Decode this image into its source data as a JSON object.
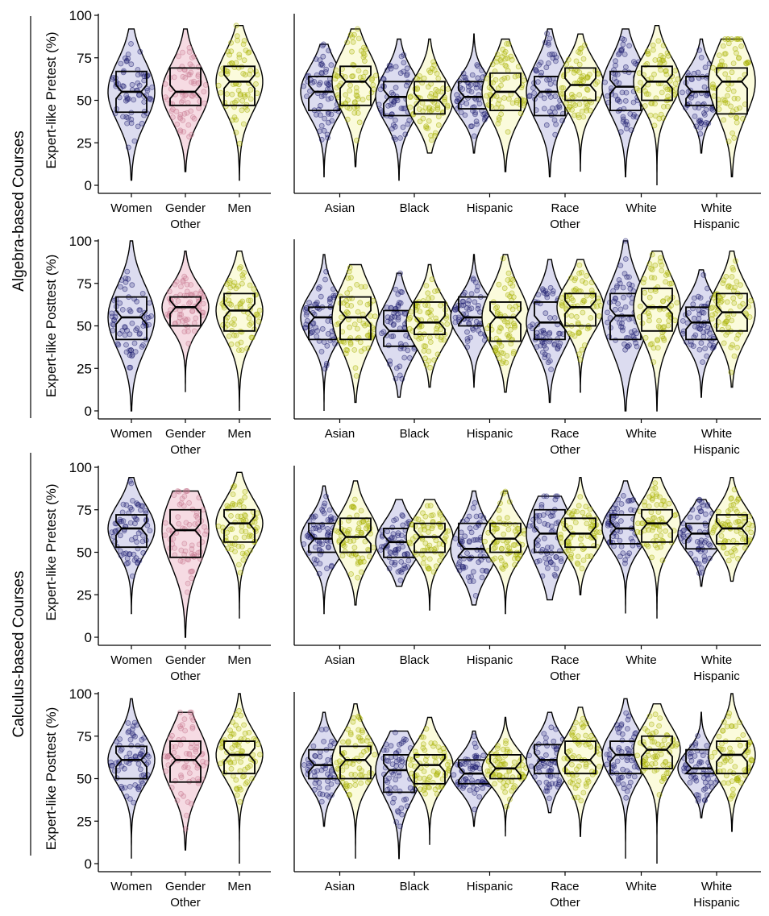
{
  "colors": {
    "women": "#1a1a6e",
    "gender_other": "#c97a91",
    "men": "#a8b000",
    "race_left": "#1a1a6e",
    "race_right": "#a8b000",
    "fill_women": "#dcdcf0",
    "fill_other": "#f6dbe3",
    "fill_men": "#fbfbdc"
  },
  "chart_data": {
    "type": "violin",
    "group_labels": [
      "Algebra-based Courses",
      "Calculus-based Courses"
    ],
    "ylim": [
      0,
      100
    ],
    "yticks": [
      "0",
      "25",
      "50",
      "75",
      "100"
    ],
    "gender_categories": [
      "Women",
      "Gender\nOther",
      "Men"
    ],
    "race_categories": [
      "Asian",
      "Black",
      "Hispanic",
      "Race\nOther",
      "White",
      "White\nHispanic"
    ],
    "panels": [
      {
        "course": "Algebra-based Courses",
        "ylabel": "Expert-like Pretest (%)",
        "gender": [
          {
            "category": "Women",
            "min": 3,
            "q1": 43,
            "median": 55,
            "q3": 67,
            "max": 92
          },
          {
            "category": "Gender Other",
            "min": 8,
            "q1": 47,
            "median": 55,
            "q3": 69,
            "max": 92
          },
          {
            "category": "Men",
            "min": 3,
            "q1": 47,
            "median": 61,
            "q3": 70,
            "max": 94
          }
        ],
        "race": [
          {
            "category": "Asian",
            "left": {
              "min": 5,
              "q1": 44,
              "median": 55,
              "q3": 64,
              "max": 83
            },
            "right": {
              "min": 11,
              "q1": 47,
              "median": 61,
              "q3": 70,
              "max": 92
            }
          },
          {
            "category": "Black",
            "left": {
              "min": 3,
              "q1": 41,
              "median": 52,
              "q3": 61,
              "max": 86
            },
            "right": {
              "min": 19,
              "q1": 42,
              "median": 50,
              "q3": 61,
              "max": 86
            }
          },
          {
            "category": "Hispanic",
            "left": {
              "min": 19,
              "q1": 45,
              "median": 52,
              "q3": 61,
              "max": 89
            },
            "right": {
              "min": 8,
              "q1": 44,
              "median": 55,
              "q3": 66,
              "max": 86
            }
          },
          {
            "category": "Race Other",
            "left": {
              "min": 5,
              "q1": 41,
              "median": 55,
              "q3": 64,
              "max": 92
            },
            "right": {
              "min": 8,
              "q1": 50,
              "median": 59,
              "q3": 69,
              "max": 89
            }
          },
          {
            "category": "White",
            "left": {
              "min": 5,
              "q1": 44,
              "median": 58,
              "q3": 67,
              "max": 92
            },
            "right": {
              "min": 0,
              "q1": 50,
              "median": 61,
              "q3": 70,
              "max": 94
            }
          },
          {
            "category": "White Hispanic",
            "left": {
              "min": 19,
              "q1": 47,
              "median": 55,
              "q3": 64,
              "max": 86
            },
            "right": {
              "min": 5,
              "q1": 42,
              "median": 61,
              "q3": 69,
              "max": 86
            }
          }
        ]
      },
      {
        "course": "Algebra-based Courses",
        "ylabel": "Expert-like Posttest (%)",
        "gender": [
          {
            "category": "Women",
            "min": 0,
            "q1": 42,
            "median": 55,
            "q3": 67,
            "max": 100
          },
          {
            "category": "Gender Other",
            "min": 11,
            "q1": 50,
            "median": 61,
            "q3": 67,
            "max": 94
          },
          {
            "category": "Men",
            "min": 0,
            "q1": 47,
            "median": 59,
            "q3": 69,
            "max": 94
          }
        ],
        "race": [
          {
            "category": "Asian",
            "left": {
              "min": 0,
              "q1": 42,
              "median": 55,
              "q3": 61,
              "max": 92
            },
            "right": {
              "min": 5,
              "q1": 42,
              "median": 55,
              "q3": 67,
              "max": 86
            }
          },
          {
            "category": "Black",
            "left": {
              "min": 8,
              "q1": 38,
              "median": 47,
              "q3": 59,
              "max": 81
            },
            "right": {
              "min": 14,
              "q1": 45,
              "median": 52,
              "q3": 64,
              "max": 86
            }
          },
          {
            "category": "Hispanic",
            "left": {
              "min": 14,
              "q1": 50,
              "median": 55,
              "q3": 67,
              "max": 92
            },
            "right": {
              "min": 11,
              "q1": 41,
              "median": 55,
              "q3": 64,
              "max": 92
            }
          },
          {
            "category": "Race Other",
            "left": {
              "min": 5,
              "q1": 42,
              "median": 52,
              "q3": 64,
              "max": 89
            },
            "right": {
              "min": 11,
              "q1": 50,
              "median": 61,
              "q3": 69,
              "max": 89
            }
          },
          {
            "category": "White",
            "left": {
              "min": 0,
              "q1": 42,
              "median": 56,
              "q3": 69,
              "max": 100
            },
            "right": {
              "min": 0,
              "q1": 47,
              "median": 61,
              "q3": 72,
              "max": 94
            }
          },
          {
            "category": "White Hispanic",
            "left": {
              "min": 8,
              "q1": 42,
              "median": 52,
              "q3": 61,
              "max": 83
            },
            "right": {
              "min": 14,
              "q1": 47,
              "median": 58,
              "q3": 69,
              "max": 94
            }
          }
        ]
      },
      {
        "course": "Calculus-based Courses",
        "ylabel": "Expert-like Pretest (%)",
        "gender": [
          {
            "category": "Women",
            "min": 14,
            "q1": 53,
            "median": 64,
            "q3": 72,
            "max": 94
          },
          {
            "category": "Gender Other",
            "min": 0,
            "q1": 47,
            "median": 63,
            "q3": 75,
            "max": 86
          },
          {
            "category": "Men",
            "min": 11,
            "q1": 56,
            "median": 67,
            "q3": 75,
            "max": 97
          }
        ],
        "race": [
          {
            "category": "Asian",
            "left": {
              "min": 14,
              "q1": 50,
              "median": 58,
              "q3": 67,
              "max": 89
            },
            "right": {
              "min": 19,
              "q1": 50,
              "median": 59,
              "q3": 70,
              "max": 92
            }
          },
          {
            "category": "Black",
            "left": {
              "min": 30,
              "q1": 47,
              "median": 56,
              "q3": 64,
              "max": 81
            },
            "right": {
              "min": 16,
              "q1": 50,
              "median": 59,
              "q3": 67,
              "max": 81
            }
          },
          {
            "category": "Hispanic",
            "left": {
              "min": 19,
              "q1": 47,
              "median": 52,
              "q3": 67,
              "max": 86
            },
            "right": {
              "min": 14,
              "q1": 50,
              "median": 58,
              "q3": 67,
              "max": 86
            }
          },
          {
            "category": "Race Other",
            "left": {
              "min": 22,
              "q1": 50,
              "median": 61,
              "q3": 75,
              "max": 83
            },
            "right": {
              "min": 25,
              "q1": 53,
              "median": 61,
              "q3": 70,
              "max": 94
            }
          },
          {
            "category": "White",
            "left": {
              "min": 14,
              "q1": 55,
              "median": 64,
              "q3": 72,
              "max": 92
            },
            "right": {
              "min": 11,
              "q1": 56,
              "median": 67,
              "q3": 75,
              "max": 94
            }
          },
          {
            "category": "White Hispanic",
            "left": {
              "min": 30,
              "q1": 52,
              "median": 61,
              "q3": 67,
              "max": 81
            },
            "right": {
              "min": 33,
              "q1": 55,
              "median": 64,
              "q3": 72,
              "max": 94
            }
          }
        ]
      },
      {
        "course": "Calculus-based Courses",
        "ylabel": "Expert-like Posttest (%)",
        "gender": [
          {
            "category": "Women",
            "min": 3,
            "q1": 50,
            "median": 61,
            "q3": 69,
            "max": 97
          },
          {
            "category": "Gender Other",
            "min": 8,
            "q1": 48,
            "median": 61,
            "q3": 72,
            "max": 89
          },
          {
            "category": "Men",
            "min": 0,
            "q1": 53,
            "median": 64,
            "q3": 72,
            "max": 100
          }
        ],
        "race": [
          {
            "category": "Asian",
            "left": {
              "min": 22,
              "q1": 50,
              "median": 58,
              "q3": 67,
              "max": 89
            },
            "right": {
              "min": 3,
              "q1": 50,
              "median": 61,
              "q3": 69,
              "max": 94
            }
          },
          {
            "category": "Black",
            "left": {
              "min": 3,
              "q1": 42,
              "median": 55,
              "q3": 64,
              "max": 78
            },
            "right": {
              "min": 11,
              "q1": 47,
              "median": 58,
              "q3": 64,
              "max": 86
            }
          },
          {
            "category": "Hispanic",
            "left": {
              "min": 22,
              "q1": 47,
              "median": 53,
              "q3": 61,
              "max": 78
            },
            "right": {
              "min": 16,
              "q1": 50,
              "median": 56,
              "q3": 64,
              "max": 86
            }
          },
          {
            "category": "Race Other",
            "left": {
              "min": 30,
              "q1": 53,
              "median": 61,
              "q3": 70,
              "max": 89
            },
            "right": {
              "min": 16,
              "q1": 53,
              "median": 61,
              "q3": 72,
              "max": 92
            }
          },
          {
            "category": "White",
            "left": {
              "min": 3,
              "q1": 53,
              "median": 64,
              "q3": 72,
              "max": 97
            },
            "right": {
              "min": 0,
              "q1": 56,
              "median": 67,
              "q3": 75,
              "max": 94
            }
          },
          {
            "category": "White Hispanic",
            "left": {
              "min": 27,
              "q1": 53,
              "median": 56,
              "q3": 67,
              "max": 89
            },
            "right": {
              "min": 19,
              "q1": 53,
              "median": 64,
              "q3": 72,
              "max": 100
            }
          }
        ]
      }
    ]
  }
}
